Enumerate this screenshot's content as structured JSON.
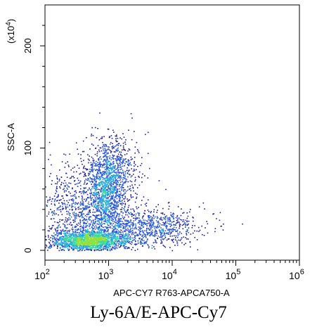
{
  "chart_data": {
    "type": "scatter",
    "title": "",
    "xlabel": "APC-CY7 R763-APCA750-A",
    "ylabel": "SSC-A",
    "y_multiplier": "(x10",
    "y_multiplier_exp": "4",
    "y_multiplier_close": ")",
    "x_scale": "log",
    "xlim": [
      100,
      1000000
    ],
    "ylim": [
      0,
      240
    ],
    "x_ticks": [
      {
        "value": 100,
        "base": "10",
        "exp": "2"
      },
      {
        "value": 1000,
        "base": "10",
        "exp": "3"
      },
      {
        "value": 10000,
        "base": "10",
        "exp": "4"
      },
      {
        "value": 100000,
        "base": "10",
        "exp": "5"
      },
      {
        "value": 1000000,
        "base": "10",
        "exp": "6"
      }
    ],
    "y_ticks": [
      {
        "value": 0,
        "label": "0"
      },
      {
        "value": 100,
        "label": "100"
      },
      {
        "value": 200,
        "label": "200"
      }
    ],
    "grid": false,
    "legend": "none",
    "density_colors": [
      "#1a1aa8",
      "#2a55d8",
      "#2aa8d8",
      "#40d8a0",
      "#90e040"
    ],
    "populations": [
      {
        "x_log_center": 2.95,
        "y_center": 55,
        "x_log_spread": 0.18,
        "y_spread": 22,
        "count": 1400
      },
      {
        "x_log_center": 2.7,
        "y_center": 10,
        "x_log_spread": 0.3,
        "y_spread": 5,
        "count": 1800
      },
      {
        "x_log_center": 3.6,
        "y_center": 22,
        "x_log_spread": 0.45,
        "y_spread": 10,
        "count": 900
      },
      {
        "x_log_center": 2.4,
        "y_center": 40,
        "x_log_spread": 0.25,
        "y_spread": 25,
        "count": 600
      },
      {
        "x_log_center": 3.1,
        "y_center": 85,
        "x_log_spread": 0.2,
        "y_spread": 15,
        "count": 350
      }
    ]
  },
  "caption": "Ly-6A/E-APC-Cy7"
}
